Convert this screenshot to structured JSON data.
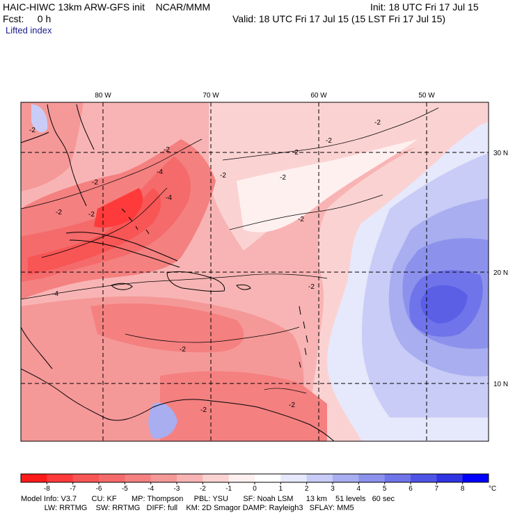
{
  "header": {
    "model_title": "HAIC-HIWC 13km ARW-GFS init    NCAR/MMM",
    "init": "Init: 18 UTC Fri 17 Jul 15",
    "fcst": "Fcst:     0 h",
    "valid": "Valid: 18 UTC Fri 17 Jul 15 (15 LST Fri 17 Jul 15)",
    "field": "Lifted index"
  },
  "map": {
    "longitude_labels": [
      "80 W",
      "70 W",
      "60 W",
      "50 W"
    ],
    "latitude_labels": [
      "30 N",
      "20 N",
      "10 N"
    ],
    "contour_labels": [
      "-2",
      "-2",
      "-2",
      "-2",
      "-2",
      "-2",
      "-2",
      "-2",
      "-2",
      "-2",
      "-2",
      "-2",
      "-2",
      "-4",
      "-4",
      "-4",
      "-2",
      "-2"
    ]
  },
  "colorbar": {
    "values": [
      "-8",
      "-7",
      "-6",
      "-5",
      "-4",
      "-3",
      "-2",
      "-1",
      "0",
      "1",
      "2",
      "3",
      "4",
      "5",
      "6",
      "7",
      "8"
    ],
    "unit": "°C",
    "colors": [
      "#ff1a1a",
      "#ff3a3a",
      "#f85555",
      "#f56a6a",
      "#f48080",
      "#f59898",
      "#f8b4b4",
      "#fbd2d2",
      "#fff0f0",
      "#ffffff",
      "#e6e8fb",
      "#c8ccf6",
      "#a9aef0",
      "#8c92ec",
      "#6f74ea",
      "#4f54e6",
      "#3034e2",
      "#0000ff"
    ]
  },
  "footer": {
    "line1": "Model Info: V3.7       CU: KF       MP: Thompson     PBL: YSU       SF: Noah LSM      13 km    51 levels   60 sec",
    "line2": "           LW: RRTMG    SW: RRTMG   DIFF: full    KM: 2D Smagor DAMP: Rayleigh3   SFLAY: MM5"
  }
}
